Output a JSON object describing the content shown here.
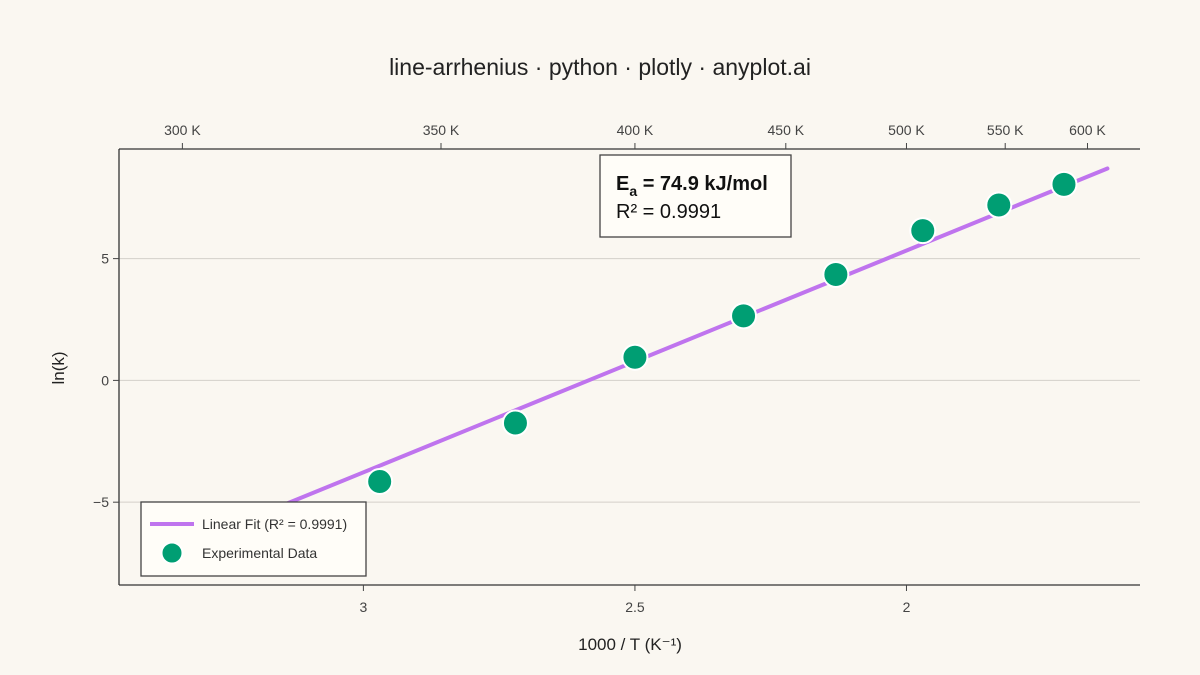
{
  "chart_data": {
    "type": "line",
    "title": "line-arrhenius · python · plotly · anyplot.ai",
    "xlabel": "1000 / T (K⁻¹)",
    "ylabel": "ln(k)",
    "xlim": [
      3.45,
      1.57
    ],
    "ylim": [
      -8.4,
      9.5
    ],
    "x_reversed": true,
    "x_ticks": [
      {
        "value": 3,
        "label": "3"
      },
      {
        "value": 2.5,
        "label": "2.5"
      },
      {
        "value": 2,
        "label": "2"
      }
    ],
    "y_ticks": [
      {
        "value": 5,
        "label": "5"
      },
      {
        "value": 0,
        "label": "0"
      },
      {
        "value": -5,
        "label": "−5"
      }
    ],
    "top_axis_ticks": [
      {
        "value": 3.3333,
        "label": "300 K"
      },
      {
        "value": 2.8571,
        "label": "350 K"
      },
      {
        "value": 2.5,
        "label": "400 K"
      },
      {
        "value": 2.2222,
        "label": "450 K"
      },
      {
        "value": 2.0,
        "label": "500 K"
      },
      {
        "value": 1.8182,
        "label": "550 K"
      },
      {
        "value": 1.6667,
        "label": "600 K"
      }
    ],
    "grid": true,
    "legend_position": "bottom-left",
    "series": [
      {
        "name": "Linear Fit (R² = 0.9991)",
        "kind": "line",
        "color": "#bf74ee",
        "x": [
          3.14,
          1.63
        ],
        "y": [
          -5.05,
          8.7
        ]
      },
      {
        "name": "Experimental Data",
        "kind": "scatter",
        "color": "#009e73",
        "x": [
          2.97,
          2.72,
          2.5,
          2.3,
          2.13,
          1.97,
          1.83,
          1.71
        ],
        "y": [
          -4.15,
          -1.75,
          0.95,
          2.65,
          4.35,
          6.15,
          7.2,
          8.05
        ]
      }
    ],
    "annotation": {
      "line1_main": "E",
      "line1_sub": "a",
      "line1_rest": " = 74.9 kJ/mol",
      "line2": "R² = 0.9991"
    }
  }
}
